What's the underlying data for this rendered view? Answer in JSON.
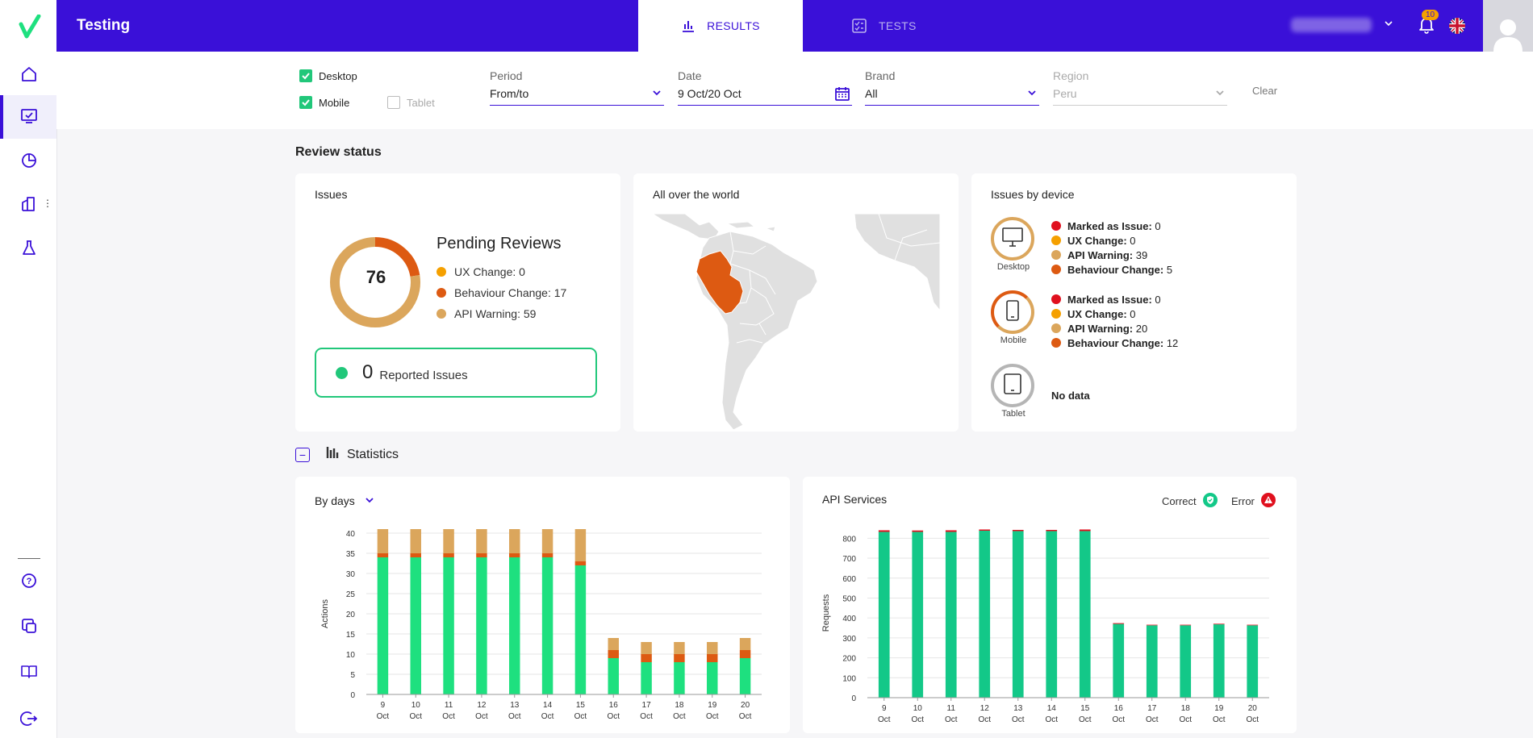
{
  "app": {
    "title": "Testing"
  },
  "tabs": [
    {
      "label": "RESULTS"
    },
    {
      "label": "TESTS"
    }
  ],
  "notifications": {
    "count": "10"
  },
  "filters": {
    "devices": [
      {
        "label": "Desktop",
        "checked": true,
        "enabled": true
      },
      {
        "label": "Mobile",
        "checked": true,
        "enabled": true
      },
      {
        "label": "Tablet",
        "checked": false,
        "enabled": false
      }
    ],
    "period": {
      "label": "Period",
      "value": "From/to"
    },
    "date": {
      "label": "Date",
      "value": "9 Oct/20 Oct"
    },
    "brand": {
      "label": "Brand",
      "value": "All"
    },
    "region": {
      "label": "Region",
      "value": "Peru"
    },
    "clear_label": "Clear"
  },
  "review_status": {
    "title": "Review status",
    "issues": {
      "title": "Issues",
      "total": "76",
      "pending_title": "Pending Reviews",
      "legend": [
        {
          "label": "UX Change: 0",
          "color": "#f5a000",
          "value": 0
        },
        {
          "label": "Behaviour Change: 17",
          "color": "#dd5a12",
          "value": 17
        },
        {
          "label": "API Warning: 59",
          "color": "#dba65c",
          "value": 59
        }
      ],
      "reported_count": "0",
      "reported_label": "Reported Issues"
    },
    "world": {
      "title": "All over the world",
      "highlight_color": "#dd5a12"
    },
    "by_device": {
      "title": "Issues by device",
      "devices": [
        {
          "name": "Desktop",
          "items": [
            {
              "label": "Marked as Issue:",
              "value": "0",
              "color": "#e0101e"
            },
            {
              "label": "UX Change:",
              "value": "0",
              "color": "#f5a000"
            },
            {
              "label": "API Warning:",
              "value": "39",
              "color": "#dba65c"
            },
            {
              "label": "Behaviour Change:",
              "value": "5",
              "color": "#dd5a12"
            }
          ]
        },
        {
          "name": "Mobile",
          "items": [
            {
              "label": "Marked as Issue:",
              "value": "0",
              "color": "#e0101e"
            },
            {
              "label": "UX Change:",
              "value": "0",
              "color": "#f5a000"
            },
            {
              "label": "API Warning:",
              "value": "20",
              "color": "#dba65c"
            },
            {
              "label": "Behaviour Change:",
              "value": "12",
              "color": "#dd5a12"
            }
          ]
        },
        {
          "name": "Tablet",
          "no_data": "No data"
        }
      ]
    }
  },
  "statistics": {
    "title": "Statistics",
    "by_days_label": "By days",
    "api_title": "API Services",
    "api_legend": {
      "correct": "Correct",
      "error": "Error"
    }
  },
  "chart_data": [
    {
      "type": "bar",
      "stacked": true,
      "ylabel": "Actions",
      "ylim": [
        0,
        40
      ],
      "yticks": [
        0,
        5,
        10,
        15,
        20,
        25,
        30,
        35,
        40
      ],
      "categories": [
        "9",
        "10",
        "11",
        "12",
        "13",
        "14",
        "15",
        "16",
        "17",
        "18",
        "19",
        "20"
      ],
      "category_sublabel": "Oct",
      "series": [
        {
          "color": "#1ee07f",
          "values": [
            34,
            34,
            34,
            34,
            34,
            34,
            32,
            9,
            8,
            8,
            8,
            9
          ]
        },
        {
          "color": "#dd5a12",
          "values": [
            1,
            1,
            1,
            1,
            1,
            1,
            1,
            2,
            2,
            2,
            2,
            2
          ]
        },
        {
          "color": "#dba65c",
          "values": [
            6,
            6,
            6,
            6,
            6,
            6,
            8,
            3,
            3,
            3,
            3,
            3
          ]
        }
      ]
    },
    {
      "type": "bar",
      "stacked": true,
      "ylabel": "Requests",
      "ylim": [
        0,
        850
      ],
      "yticks": [
        0,
        100,
        200,
        300,
        400,
        500,
        600,
        700,
        800
      ],
      "categories": [
        "9",
        "10",
        "11",
        "12",
        "13",
        "14",
        "15",
        "16",
        "17",
        "18",
        "19",
        "20"
      ],
      "category_sublabel": "Oct",
      "series": [
        {
          "name": "Correct",
          "color": "#13c888",
          "values": [
            832,
            832,
            832,
            838,
            836,
            836,
            836,
            370,
            363,
            363,
            368,
            363
          ]
        },
        {
          "name": "Error",
          "color": "#e0101e",
          "values": [
            8,
            7,
            8,
            6,
            6,
            6,
            8,
            4,
            3,
            3,
            3,
            3
          ]
        }
      ]
    }
  ]
}
